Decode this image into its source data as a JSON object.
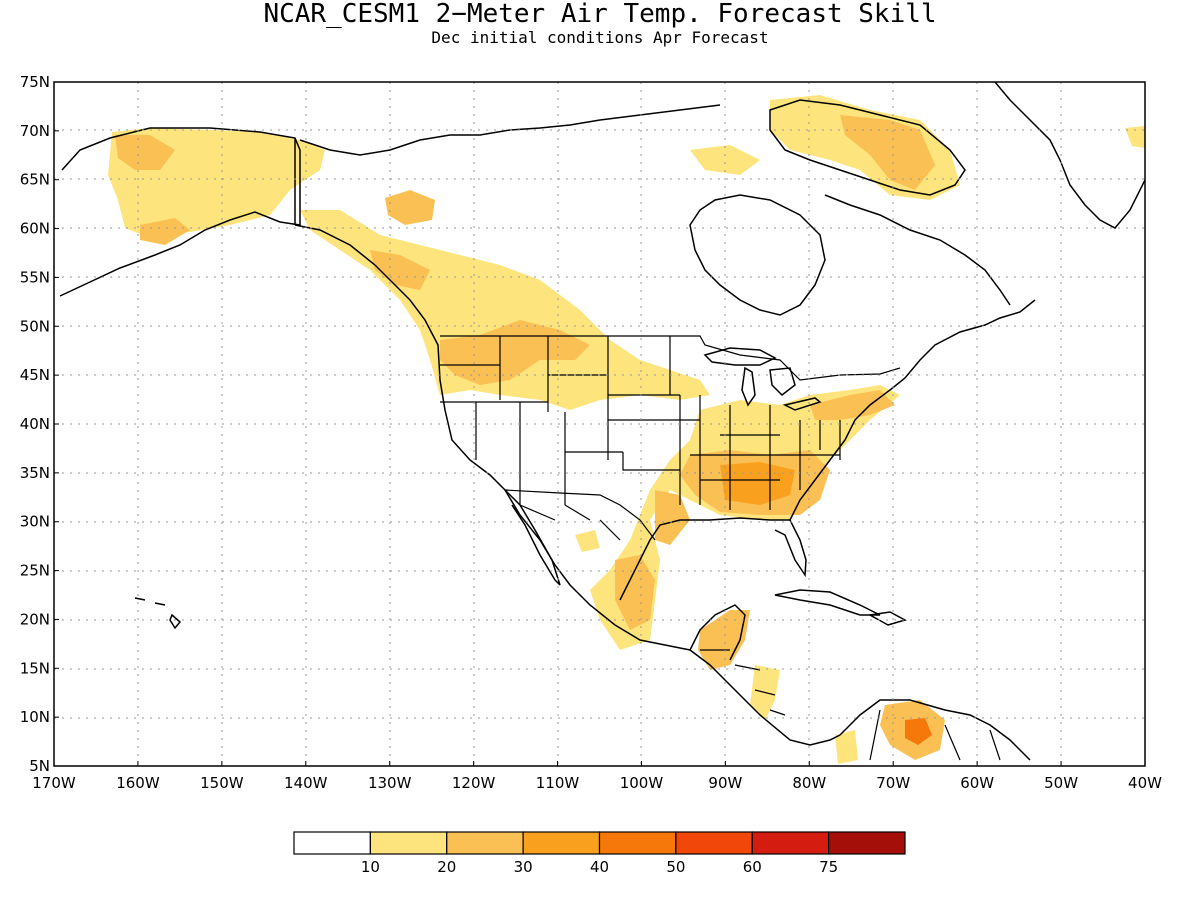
{
  "title": "NCAR_CESM1 2−Meter Air Temp. Forecast Skill",
  "subtitle": "Dec initial conditions  Apr Forecast",
  "map": {
    "lat_labels": [
      "75N",
      "70N",
      "65N",
      "60N",
      "55N",
      "50N",
      "45N",
      "40N",
      "35N",
      "30N",
      "25N",
      "20N",
      "15N",
      "10N",
      "5N"
    ],
    "lon_labels": [
      "170W",
      "160W",
      "150W",
      "140W",
      "130W",
      "120W",
      "110W",
      "100W",
      "90W",
      "80W",
      "70W",
      "60W",
      "50W",
      "40W"
    ],
    "lat_range": [
      5,
      75
    ],
    "lon_range": [
      -170,
      -40
    ],
    "gridlines": "dotted"
  },
  "colorbar": {
    "levels": [
      "10",
      "20",
      "30",
      "40",
      "50",
      "60",
      "75"
    ],
    "colors": [
      "#ffffff",
      "#fde47c",
      "#fbc054",
      "#f9a11f",
      "#f7780a",
      "#f2470b",
      "#d51c10",
      "#a50f0a"
    ]
  },
  "colors": {
    "land_outline": "#000000",
    "grid": "#999999"
  }
}
